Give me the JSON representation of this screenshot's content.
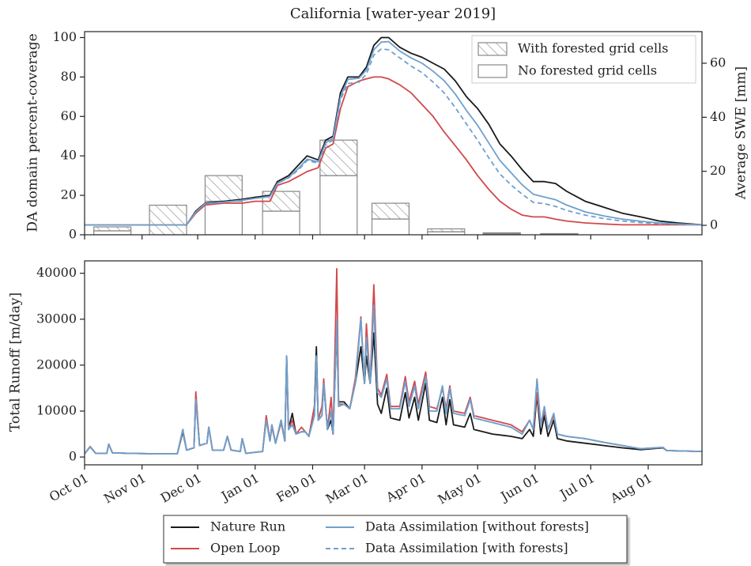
{
  "chart_data": [
    {
      "type": "bar",
      "title": "California [water-year 2019]",
      "ylabel": "DA domain percent-coverage",
      "y2label": "Average SWE [mm]",
      "xlim": [
        0,
        333
      ],
      "ylim": [
        0,
        103
      ],
      "yticks": [
        0,
        20,
        40,
        60,
        80,
        100
      ],
      "y2lim": [
        -3.5,
        71.7
      ],
      "y2ticks": [
        0,
        20,
        40,
        60
      ],
      "legend": "upper right",
      "bars": {
        "x": [
          15,
          45,
          75,
          106,
          137,
          165,
          195,
          225,
          256
        ],
        "series": [
          {
            "name": "With forested grid cells",
            "hatch": true,
            "color": "#888888",
            "values": [
              2,
              15,
              13,
              10,
              18,
              8,
              1.5,
              0.5,
              0.3
            ]
          },
          {
            "name": "No forested grid cells",
            "hatch": false,
            "color": "#888888",
            "values": [
              2,
              0,
              17,
              12,
              30,
              8,
              1.5,
              0.5,
              0.3
            ]
          }
        ]
      },
      "x": [
        0,
        30,
        55,
        60,
        65,
        75,
        85,
        92,
        100,
        104,
        110,
        116,
        120,
        126,
        130,
        134,
        138,
        142,
        148,
        152,
        156,
        160,
        164,
        170,
        176,
        182,
        188,
        194,
        200,
        206,
        212,
        218,
        224,
        230,
        236,
        242,
        248,
        254,
        260,
        270,
        280,
        290,
        300,
        310,
        320,
        333
      ],
      "series": [
        {
          "color": "#1a1a1a",
          "dash": false,
          "axis": "y2",
          "values": [
            0.2,
            0.2,
            0.2,
            5.3,
            8.2,
            8.9,
            9.6,
            10.4,
            11.1,
            16.2,
            18.4,
            22.8,
            25.7,
            24.2,
            31.5,
            33.0,
            49.1,
            54.9,
            54.9,
            58.6,
            66.6,
            69.5,
            69.5,
            65.9,
            63.7,
            62.2,
            60.0,
            57.8,
            53.4,
            47.6,
            43.2,
            37.4,
            30.1,
            25.7,
            20.6,
            16.2,
            16.2,
            15.5,
            12.6,
            8.9,
            6.7,
            4.5,
            3.1,
            1.6,
            0.9,
            0.2
          ]
        },
        {
          "color": "#d1494b",
          "dash": false,
          "axis": "y2",
          "values": [
            0.2,
            0.2,
            0.2,
            4.5,
            7.5,
            8.2,
            8.2,
            8.9,
            8.9,
            14.8,
            16.2,
            18.4,
            19.9,
            21.3,
            28.6,
            30.1,
            43.2,
            51.3,
            53.4,
            54.2,
            54.9,
            54.9,
            54.2,
            52.0,
            49.1,
            44.7,
            40.3,
            34.5,
            29.4,
            24.2,
            18.4,
            13.3,
            8.9,
            6.0,
            3.8,
            3.1,
            3.1,
            2.3,
            1.6,
            0.9,
            0.5,
            0.2,
            0.2,
            0.2,
            0.2,
            0.2
          ]
        },
        {
          "color": "#6fa0cc",
          "dash": false,
          "axis": "y2",
          "values": [
            0.2,
            0.2,
            0.2,
            5.0,
            8.0,
            8.6,
            9.3,
            10.0,
            10.7,
            15.5,
            17.7,
            21.5,
            24.5,
            23.5,
            30.5,
            32.2,
            47.5,
            54.0,
            54.5,
            57.5,
            65.0,
            67.8,
            68.0,
            64.5,
            62.0,
            60.0,
            57.0,
            53.5,
            48.5,
            42.5,
            37.0,
            30.5,
            24.0,
            19.5,
            15.0,
            11.5,
            10.5,
            9.5,
            7.5,
            5.0,
            3.5,
            2.3,
            1.5,
            0.9,
            0.5,
            0.2
          ]
        },
        {
          "color": "#6fa0cc",
          "dash": true,
          "axis": "y2",
          "values": [
            0.2,
            0.2,
            0.2,
            5.0,
            8.0,
            8.6,
            9.3,
            10.0,
            10.7,
            15.5,
            17.5,
            21.0,
            24.0,
            23.0,
            30.0,
            31.5,
            46.5,
            52.5,
            53.0,
            56.0,
            63.0,
            65.3,
            65.0,
            62.0,
            59.0,
            56.5,
            53.0,
            49.0,
            43.5,
            37.5,
            31.5,
            25.0,
            19.0,
            15.0,
            11.5,
            8.5,
            8.0,
            7.0,
            5.5,
            3.8,
            2.5,
            1.6,
            1.0,
            0.6,
            0.4,
            0.2
          ]
        }
      ]
    },
    {
      "type": "line",
      "ylabel": "Total Runoff [m/day]",
      "xlim": [
        0,
        333
      ],
      "xticks": [
        {
          "value": 0,
          "label": "Oct 01"
        },
        {
          "value": 31,
          "label": "Nov 01"
        },
        {
          "value": 61,
          "label": "Dec 01"
        },
        {
          "value": 92,
          "label": "Jan 01"
        },
        {
          "value": 123,
          "label": "Feb 01"
        },
        {
          "value": 151,
          "label": "Mar 01"
        },
        {
          "value": 182,
          "label": "Apr 01"
        },
        {
          "value": 212,
          "label": "May 01"
        },
        {
          "value": 243,
          "label": "Jun 01"
        },
        {
          "value": 273,
          "label": "Jul 01"
        },
        {
          "value": 304,
          "label": "Aug 01"
        }
      ],
      "ylim": [
        -1700,
        42700
      ],
      "yticks": [
        0,
        10000,
        20000,
        30000,
        40000
      ],
      "legend": "lower center",
      "x": [
        0,
        3,
        6,
        12,
        13,
        15,
        25,
        40,
        50,
        53,
        55,
        59,
        60,
        62,
        66,
        67,
        69,
        75,
        77,
        79,
        84,
        85,
        87,
        96,
        98,
        100,
        101,
        103,
        106,
        108,
        109,
        110,
        112,
        114,
        117,
        119,
        121,
        124,
        125,
        126,
        128,
        129,
        131,
        133,
        134,
        136,
        137,
        140,
        143,
        146,
        149,
        151,
        152,
        154,
        156,
        158,
        160,
        163,
        165,
        170,
        173,
        175,
        178,
        180,
        184,
        186,
        190,
        193,
        195,
        197,
        199,
        205,
        208,
        210,
        220,
        230,
        236,
        240,
        242,
        244,
        246,
        248,
        250,
        253,
        255,
        260,
        270,
        280,
        290,
        300,
        312,
        314,
        333
      ],
      "series": [
        {
          "name": "Nature Run",
          "color": "#1a1a1a",
          "dash": false,
          "values": [
            700,
            2200,
            800,
            800,
            2800,
            900,
            800,
            700,
            700,
            5500,
            1500,
            2000,
            13000,
            2500,
            3000,
            6500,
            1500,
            1500,
            4500,
            1500,
            1200,
            4000,
            800,
            1200,
            8500,
            3500,
            7000,
            3000,
            8000,
            3500,
            22000,
            6000,
            9500,
            5000,
            5500,
            5500,
            4500,
            11000,
            24000,
            8000,
            9000,
            16000,
            6000,
            8000,
            5000,
            28000,
            12000,
            12000,
            10500,
            16000,
            24000,
            16000,
            22000,
            16000,
            27000,
            11500,
            9500,
            15000,
            8500,
            8000,
            14000,
            8500,
            13000,
            8000,
            16000,
            8000,
            7500,
            13000,
            7000,
            12500,
            7000,
            6500,
            9500,
            6000,
            5000,
            4500,
            4000,
            6000,
            4500,
            13500,
            5000,
            9000,
            4500,
            8000,
            4000,
            3500,
            3000,
            2500,
            2000,
            1600,
            2000,
            1400,
            1200
          ]
        },
        {
          "name": "Open Loop",
          "color": "#d1494b",
          "dash": false,
          "values": [
            700,
            2300,
            800,
            800,
            2800,
            900,
            800,
            700,
            700,
            6000,
            1500,
            2000,
            14200,
            2500,
            3000,
            6500,
            1500,
            1500,
            4500,
            1500,
            1200,
            4000,
            800,
            1200,
            9000,
            3500,
            6500,
            3000,
            7500,
            3500,
            20000,
            6000,
            8000,
            5000,
            6500,
            5500,
            4500,
            11000,
            20000,
            8000,
            11000,
            17000,
            6000,
            13000,
            5000,
            41000,
            11500,
            11500,
            10500,
            17000,
            30500,
            16000,
            29000,
            16000,
            37500,
            15000,
            13500,
            18000,
            11000,
            11000,
            17500,
            12000,
            16500,
            11500,
            18500,
            11000,
            10500,
            15000,
            10500,
            15500,
            10000,
            9500,
            13000,
            9000,
            8000,
            7000,
            5500,
            8000,
            6000,
            14000,
            7000,
            10000,
            6000,
            9000,
            5000,
            4500,
            4000,
            3200,
            2500,
            1800,
            2100,
            1400,
            1200
          ]
        },
        {
          "name": "Data Assimilation [without forests]",
          "color": "#6fa0cc",
          "dash": false,
          "values": [
            700,
            2200,
            800,
            800,
            2800,
            900,
            800,
            700,
            700,
            6000,
            1500,
            2000,
            12500,
            2500,
            3000,
            6500,
            1500,
            1500,
            4500,
            1500,
            1200,
            4000,
            800,
            1200,
            8000,
            3500,
            7000,
            3000,
            8000,
            3500,
            22000,
            6000,
            7000,
            5000,
            5500,
            5500,
            4500,
            9000,
            22000,
            8000,
            9000,
            16000,
            6000,
            10000,
            5000,
            29000,
            11000,
            11500,
            10500,
            16000,
            30000,
            16000,
            26000,
            16000,
            33000,
            14000,
            13000,
            17000,
            10500,
            10500,
            16500,
            11000,
            15500,
            10500,
            17500,
            10000,
            10000,
            15500,
            9500,
            15000,
            9500,
            9000,
            12500,
            8500,
            7500,
            6500,
            5000,
            8000,
            6000,
            17000,
            7000,
            11000,
            6000,
            9500,
            5000,
            4500,
            4000,
            3200,
            2500,
            1800,
            2100,
            1400,
            1200
          ]
        },
        {
          "name": "Data Assimilation [with forests]",
          "color": "#6fa0cc",
          "dash": true,
          "values": [
            700,
            2200,
            800,
            800,
            2800,
            900,
            800,
            700,
            700,
            6000,
            1500,
            2000,
            12500,
            2500,
            3000,
            6500,
            1500,
            1500,
            4500,
            1500,
            1200,
            4000,
            800,
            1200,
            8000,
            3500,
            7000,
            3000,
            8000,
            3500,
            22000,
            6000,
            7000,
            5000,
            5500,
            5500,
            4500,
            9000,
            22000,
            8000,
            9000,
            16000,
            6000,
            10000,
            5000,
            30000,
            11000,
            11500,
            10500,
            16000,
            30000,
            16000,
            26000,
            16000,
            33000,
            14000,
            13000,
            17000,
            10500,
            10500,
            16500,
            11000,
            15500,
            10500,
            17500,
            10000,
            10000,
            15500,
            9500,
            15000,
            9500,
            9000,
            12500,
            8500,
            7500,
            6500,
            5000,
            8000,
            6000,
            17000,
            7000,
            11000,
            6000,
            9500,
            5000,
            4500,
            4000,
            3200,
            2500,
            1800,
            2100,
            1400,
            1200
          ]
        }
      ]
    }
  ]
}
